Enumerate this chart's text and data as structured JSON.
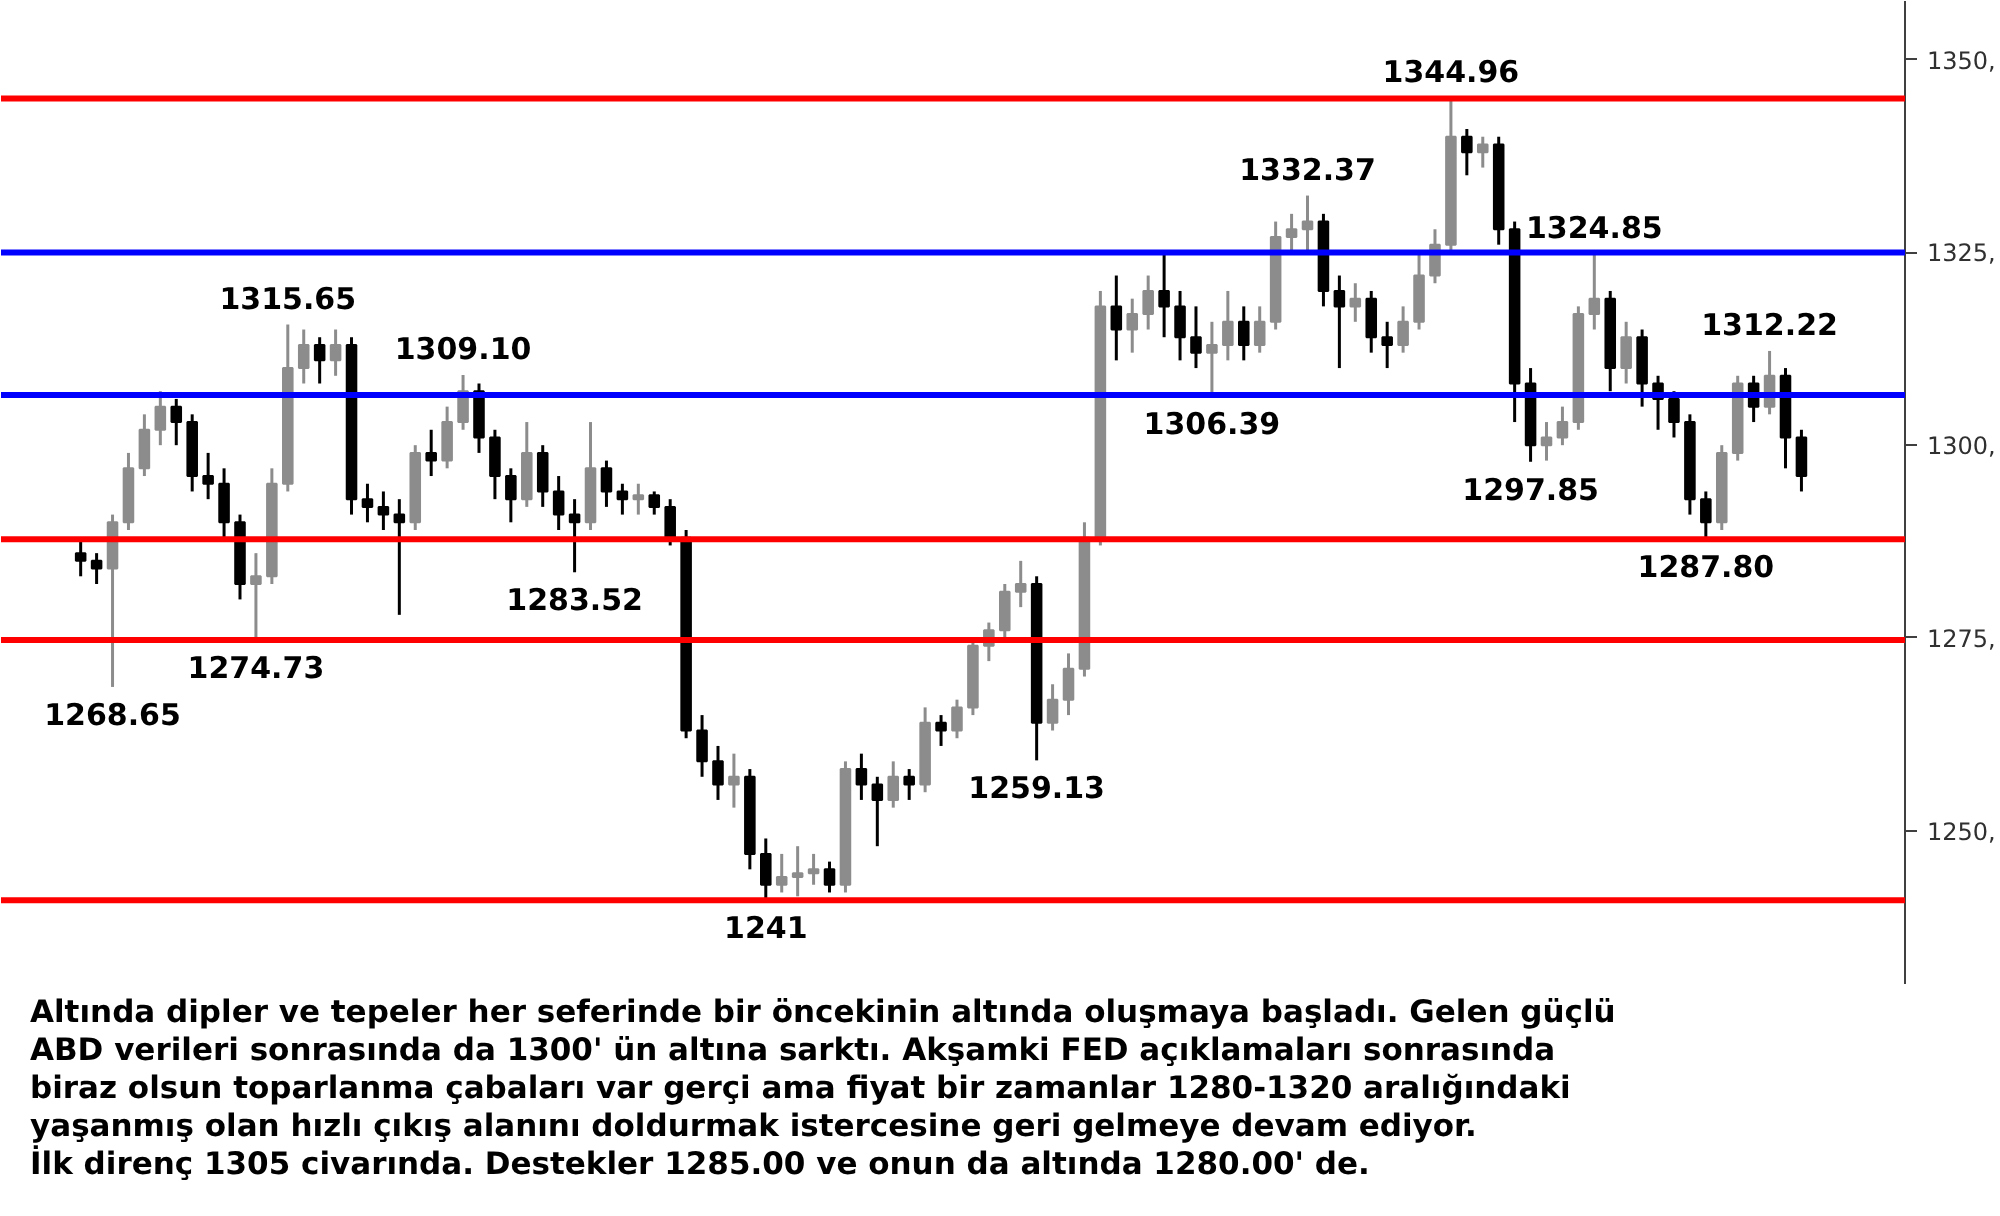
{
  "chart_data": {
    "type": "candlestick",
    "categories": [
      null,
      null,
      null,
      null,
      null,
      null,
      null,
      null,
      null,
      null,
      null,
      null,
      null,
      null,
      null,
      null,
      null,
      null,
      null,
      null,
      null,
      null,
      null,
      null,
      null,
      null,
      null,
      null,
      null,
      null,
      null,
      null,
      null,
      null,
      null,
      null,
      null,
      null,
      null,
      null,
      null,
      null,
      null,
      null,
      null,
      null,
      null,
      null,
      null,
      null,
      null,
      null,
      null,
      null,
      null,
      null,
      null,
      null,
      null,
      null,
      null,
      null,
      null,
      null,
      null,
      null,
      null,
      null,
      null,
      null,
      null,
      null,
      null,
      null,
      null,
      null,
      null,
      null,
      null,
      null,
      null,
      null,
      null,
      null,
      null,
      null,
      null,
      null,
      null,
      null,
      null,
      null,
      null,
      null,
      null,
      null,
      null,
      null,
      null,
      null,
      null,
      null,
      null,
      null,
      null,
      null,
      null,
      null,
      null
    ],
    "ohlc": [
      [
        1286,
        1288,
        1283,
        1285
      ],
      [
        1285,
        1286,
        1282,
        1284
      ],
      [
        1284,
        1291,
        1268.65,
        1290
      ],
      [
        1290,
        1299,
        1289,
        1297
      ],
      [
        1297,
        1304,
        1296,
        1302
      ],
      [
        1302,
        1307,
        1300,
        1305
      ],
      [
        1305,
        1306,
        1300,
        1303
      ],
      [
        1303,
        1304,
        1294,
        1296
      ],
      [
        1296,
        1299,
        1293,
        1295
      ],
      [
        1295,
        1297,
        1288,
        1290
      ],
      [
        1290,
        1291,
        1280,
        1282
      ],
      [
        1282,
        1286,
        1274.73,
        1283
      ],
      [
        1283,
        1297,
        1282,
        1295
      ],
      [
        1295,
        1315.65,
        1294,
        1310
      ],
      [
        1310,
        1315,
        1308,
        1313
      ],
      [
        1313,
        1314,
        1308,
        1311
      ],
      [
        1311,
        1315,
        1309,
        1313
      ],
      [
        1313,
        1314,
        1291,
        1293
      ],
      [
        1293,
        1295,
        1290,
        1292
      ],
      [
        1292,
        1294,
        1289,
        1291
      ],
      [
        1291,
        1293,
        1278,
        1290
      ],
      [
        1290,
        1300,
        1289,
        1299
      ],
      [
        1299,
        1302,
        1296,
        1298
      ],
      [
        1298,
        1305,
        1297,
        1303
      ],
      [
        1303,
        1309.1,
        1302,
        1307
      ],
      [
        1307,
        1308,
        1299,
        1301
      ],
      [
        1301,
        1302,
        1293,
        1296
      ],
      [
        1296,
        1297,
        1290,
        1293
      ],
      [
        1293,
        1303,
        1292,
        1299
      ],
      [
        1299,
        1300,
        1292,
        1294
      ],
      [
        1294,
        1296,
        1289,
        1291
      ],
      [
        1291,
        1293,
        1283.52,
        1290
      ],
      [
        1290,
        1303,
        1289,
        1297
      ],
      [
        1297,
        1298,
        1292,
        1294
      ],
      [
        1294,
        1295,
        1291,
        1293
      ],
      [
        1293,
        1295,
        1291,
        1293.5
      ],
      [
        1293.5,
        1294,
        1291,
        1292
      ],
      [
        1292,
        1293,
        1287,
        1288
      ],
      [
        1288,
        1289,
        1262,
        1263
      ],
      [
        1263,
        1265,
        1257,
        1259
      ],
      [
        1259,
        1261,
        1254,
        1256
      ],
      [
        1256,
        1260,
        1253,
        1257
      ],
      [
        1257,
        1258,
        1245,
        1247
      ],
      [
        1247,
        1249,
        1241,
        1243
      ],
      [
        1243,
        1247,
        1242,
        1244
      ],
      [
        1244,
        1248,
        1241.5,
        1244.5
      ],
      [
        1244.5,
        1247,
        1243,
        1245
      ],
      [
        1245,
        1246,
        1242,
        1243
      ],
      [
        1243,
        1259,
        1242,
        1258
      ],
      [
        1258,
        1260,
        1254,
        1256
      ],
      [
        1256,
        1257,
        1248,
        1254
      ],
      [
        1254,
        1259,
        1253,
        1257
      ],
      [
        1257,
        1258,
        1254,
        1256
      ],
      [
        1256,
        1266,
        1255,
        1264
      ],
      [
        1264,
        1265,
        1261,
        1263
      ],
      [
        1263,
        1267,
        1262,
        1266
      ],
      [
        1266,
        1275,
        1265,
        1274
      ],
      [
        1274,
        1277,
        1272,
        1276
      ],
      [
        1276,
        1282,
        1275,
        1281
      ],
      [
        1281,
        1285,
        1279,
        1282
      ],
      [
        1282,
        1283,
        1259.13,
        1264
      ],
      [
        1264,
        1269,
        1263,
        1267
      ],
      [
        1267,
        1273,
        1265,
        1271
      ],
      [
        1271,
        1290,
        1270,
        1288
      ],
      [
        1288,
        1320,
        1287,
        1318
      ],
      [
        1318,
        1322,
        1311,
        1315
      ],
      [
        1315,
        1319,
        1312,
        1317
      ],
      [
        1317,
        1322,
        1315,
        1320
      ],
      [
        1320,
        1325,
        1314,
        1318
      ],
      [
        1318,
        1320,
        1311,
        1314
      ],
      [
        1314,
        1318,
        1310,
        1312
      ],
      [
        1312,
        1316,
        1306.39,
        1313
      ],
      [
        1313,
        1320,
        1311,
        1316
      ],
      [
        1316,
        1318,
        1311,
        1313
      ],
      [
        1313,
        1318,
        1312,
        1316
      ],
      [
        1316,
        1329,
        1315,
        1327
      ],
      [
        1327,
        1330,
        1325,
        1328
      ],
      [
        1328,
        1332.37,
        1325,
        1329
      ],
      [
        1329,
        1330,
        1318,
        1320
      ],
      [
        1320,
        1322,
        1310,
        1318
      ],
      [
        1318,
        1321,
        1316,
        1319
      ],
      [
        1319,
        1320,
        1312,
        1314
      ],
      [
        1314,
        1316,
        1310,
        1313
      ],
      [
        1313,
        1318,
        1312,
        1316
      ],
      [
        1316,
        1325,
        1315,
        1322
      ],
      [
        1322,
        1328,
        1321,
        1326
      ],
      [
        1326,
        1344.96,
        1325,
        1340
      ],
      [
        1340,
        1341,
        1335,
        1338
      ],
      [
        1338,
        1340,
        1336,
        1339
      ],
      [
        1339,
        1340,
        1326,
        1328
      ],
      [
        1328,
        1329,
        1303,
        1308
      ],
      [
        1308,
        1310,
        1297.85,
        1300
      ],
      [
        1300,
        1303,
        1298,
        1301
      ],
      [
        1301,
        1305,
        1300,
        1303
      ],
      [
        1303,
        1318,
        1302,
        1317
      ],
      [
        1317,
        1324.85,
        1315,
        1319
      ],
      [
        1319,
        1320,
        1307,
        1310
      ],
      [
        1310,
        1316,
        1308,
        1314
      ],
      [
        1314,
        1315,
        1305,
        1308
      ],
      [
        1308,
        1309,
        1302,
        1306
      ],
      [
        1306,
        1307,
        1301,
        1303
      ],
      [
        1303,
        1304,
        1291,
        1293
      ],
      [
        1293,
        1294,
        1287.8,
        1290
      ],
      [
        1290,
        1300,
        1289,
        1299
      ],
      [
        1299,
        1309,
        1298,
        1308
      ],
      [
        1308,
        1309,
        1303,
        1305
      ],
      [
        1305,
        1312.22,
        1304,
        1309
      ],
      [
        1309,
        1310,
        1297,
        1301
      ],
      [
        1301,
        1302,
        1294,
        1296
      ]
    ],
    "ylim": [
      1230,
      1357.6
    ],
    "yticks": [
      {
        "value": 1250,
        "label": "1250,"
      },
      {
        "value": 1275,
        "label": "1275,"
      },
      {
        "value": 1300,
        "label": "1300,"
      },
      {
        "value": 1325,
        "label": "1325,"
      },
      {
        "value": 1350,
        "label": "1350,"
      }
    ],
    "tick_labels": "y",
    "grid": false,
    "ref_lines": [
      {
        "axis": "y",
        "value": 1344.96,
        "color": "#ff0000"
      },
      {
        "axis": "y",
        "value": 1325,
        "color": "#0000ff"
      },
      {
        "axis": "y",
        "value": 1306.5,
        "color": "#0000ff"
      },
      {
        "axis": "y",
        "value": 1287.8,
        "color": "#ff0000"
      },
      {
        "axis": "y",
        "value": 1274.73,
        "color": "#ff0000"
      },
      {
        "axis": "y",
        "value": 1241,
        "color": "#ff0000"
      }
    ],
    "annotations": [
      {
        "text": "1268.65",
        "y": 1268.65
      },
      {
        "text": "1274.73",
        "y": 1274.73
      },
      {
        "text": "1315.65",
        "y": 1315.65
      },
      {
        "text": "1309.10",
        "y": 1309.1
      },
      {
        "text": "1283.52",
        "y": 1283.52
      },
      {
        "text": "1241",
        "y": 1241
      },
      {
        "text": "1259.13",
        "y": 1259.13
      },
      {
        "text": "1306.39",
        "y": 1306.39
      },
      {
        "text": "1332.37",
        "y": 1332.37
      },
      {
        "text": "1344.96",
        "y": 1344.96
      },
      {
        "text": "1324.85",
        "y": 1324.85
      },
      {
        "text": "1297.85",
        "y": 1297.85
      },
      {
        "text": "1312.22",
        "y": 1312.22
      },
      {
        "text": "1287.80",
        "y": 1287.8
      },
      "Altında dipler ve tepeler her seferinde bir öncekinin altında oluşmaya başladı. Gelen güçlü\nABD verileri sonrasında da 1300' ün altına sarktı. Akşamki  FED açıklamaları sonrasında\nbiraz olsun toparlanma çabaları var gerçi ama fiyat bir zamanlar 1280-1320 aralığındaki\nyaşanmış olan hızlı çıkış alanını doldurmak istercesine geri gelmeye devam ediyor.\nİlk direnç 1305 civarında. Destekler 1285.00 ve onun da altında 1280.00' de."
    ]
  }
}
